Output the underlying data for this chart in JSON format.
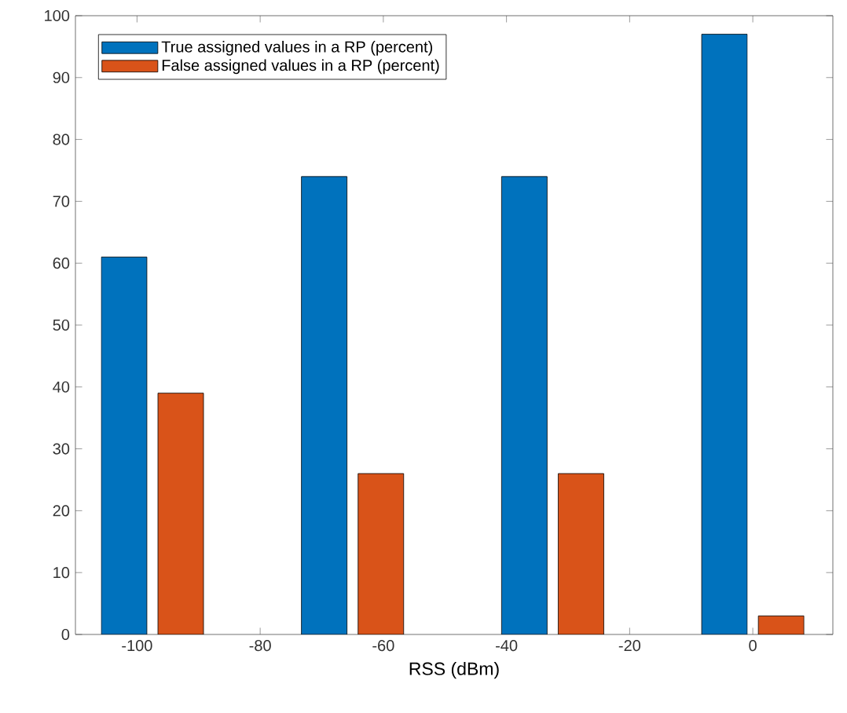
{
  "chart_data": {
    "type": "bar",
    "xlabel": "RSS (dBm)",
    "x": [
      -97.5,
      -65,
      -32.5,
      0
    ],
    "series": [
      {
        "name": "True assigned values in a RP (percent)",
        "color": "#0072bd",
        "values": [
          61,
          74,
          74,
          97
        ]
      },
      {
        "name": "False assigned values in a RP (percent)",
        "color": "#d95319",
        "values": [
          39,
          26,
          26,
          3
        ]
      }
    ],
    "xlim": [
      -110,
      13
    ],
    "ylim": [
      0,
      100
    ],
    "xticks": [
      -100,
      -80,
      -60,
      -40,
      -20,
      0
    ],
    "yticks": [
      0,
      10,
      20,
      30,
      40,
      50,
      60,
      70,
      80,
      90,
      100
    ],
    "legend": "top left",
    "grid": false
  }
}
